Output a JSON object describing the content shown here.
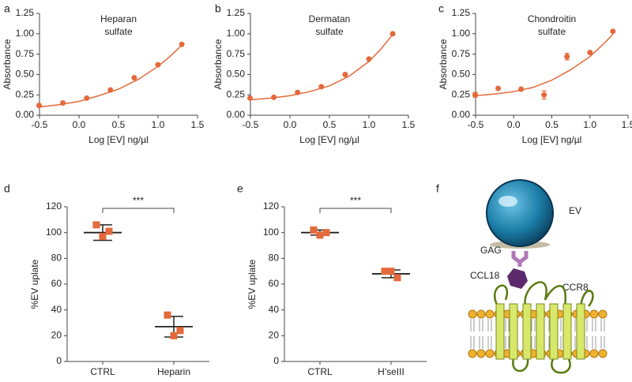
{
  "chart_data": [
    {
      "type": "curve",
      "panel": "a",
      "title": [
        "Heparan",
        "sulfate"
      ],
      "x_label": "Log [EV] ng/µl",
      "y_label": "Absorbance",
      "xlim": [
        -0.5,
        1.5
      ],
      "xticks": [
        {
          "value": -0.5,
          "label": "-0.5"
        },
        {
          "value": 0,
          "label": "0.0"
        },
        {
          "value": 0.5,
          "label": "0.5"
        },
        {
          "value": 1,
          "label": "1.0"
        },
        {
          "value": 1.5,
          "label": "1.5"
        }
      ],
      "ylim": [
        0,
        1.25
      ],
      "yticks": [
        {
          "value": 0,
          "label": "0.00"
        },
        {
          "value": 0.25,
          "label": "0.25"
        },
        {
          "value": 0.5,
          "label": "0.50"
        },
        {
          "value": 0.75,
          "label": "0.75"
        },
        {
          "value": 1,
          "label": "1.00"
        },
        {
          "value": 1.25,
          "label": "1.25"
        }
      ],
      "color": "#e4693a",
      "x": [
        -0.505,
        -0.204,
        0.097,
        0.398,
        0.699,
        1.0,
        1.301
      ],
      "values": [
        0.12,
        0.15,
        0.21,
        0.31,
        0.46,
        0.62,
        0.87
      ],
      "fit": {
        "x": [
          -0.5,
          -0.25,
          0,
          0.25,
          0.5,
          0.75,
          1.0,
          1.15,
          1.3
        ],
        "values": [
          0.1,
          0.13,
          0.17,
          0.24,
          0.32,
          0.44,
          0.6,
          0.72,
          0.86
        ]
      }
    },
    {
      "type": "curve",
      "panel": "b",
      "title": [
        "Dermatan",
        "sulfate"
      ],
      "x_label": "Log [EV] ng/µl",
      "y_label": "Absorbance",
      "xlim": [
        -0.5,
        1.5
      ],
      "xticks": [
        {
          "value": -0.5,
          "label": "-0.5"
        },
        {
          "value": 0,
          "label": "0.0"
        },
        {
          "value": 0.5,
          "label": "0.5"
        },
        {
          "value": 1,
          "label": "1.0"
        },
        {
          "value": 1.5,
          "label": "1.5"
        }
      ],
      "ylim": [
        0,
        1.25
      ],
      "yticks": [
        {
          "value": 0,
          "label": "0.00"
        },
        {
          "value": 0.25,
          "label": "0.25"
        },
        {
          "value": 0.5,
          "label": "0.50"
        },
        {
          "value": 0.75,
          "label": "0.75"
        },
        {
          "value": 1,
          "label": "1.00"
        },
        {
          "value": 1.25,
          "label": "1.25"
        }
      ],
      "color": "#e4693a",
      "x": [
        -0.505,
        -0.204,
        0.097,
        0.398,
        0.699,
        1.0,
        1.301
      ],
      "values": [
        0.21,
        0.22,
        0.28,
        0.35,
        0.5,
        0.69,
        1.0
      ],
      "fit": {
        "x": [
          -0.5,
          -0.25,
          0,
          0.25,
          0.5,
          0.75,
          1.0,
          1.15,
          1.3
        ],
        "values": [
          0.19,
          0.21,
          0.24,
          0.29,
          0.36,
          0.48,
          0.66,
          0.81,
          0.99
        ]
      }
    },
    {
      "type": "curve",
      "panel": "c",
      "title": [
        "Chondroitin",
        "sulfate"
      ],
      "x_label": "Log [EV] ng/µl",
      "y_label": "Absorbance",
      "xlim": [
        -0.5,
        1.5
      ],
      "xticks": [
        {
          "value": -0.5,
          "label": "-0.5"
        },
        {
          "value": 0,
          "label": "0.0"
        },
        {
          "value": 0.5,
          "label": "0.5"
        },
        {
          "value": 1,
          "label": "1.0"
        },
        {
          "value": 1.5,
          "label": "1.5"
        }
      ],
      "ylim": [
        0,
        1.25
      ],
      "yticks": [
        {
          "value": 0,
          "label": "0.00"
        },
        {
          "value": 0.25,
          "label": "0.25"
        },
        {
          "value": 0.5,
          "label": "0.50"
        },
        {
          "value": 0.75,
          "label": "0.75"
        },
        {
          "value": 1,
          "label": "1.00"
        },
        {
          "value": 1.25,
          "label": "1.25"
        }
      ],
      "color": "#e4693a",
      "x": [
        -0.505,
        -0.204,
        0.097,
        0.398,
        0.699,
        1.0,
        1.301
      ],
      "values": [
        0.25,
        0.33,
        0.32,
        0.25,
        0.72,
        0.77,
        1.03
      ],
      "errors": [
        0.03,
        null,
        null,
        0.05,
        0.04,
        null,
        null
      ],
      "fit": {
        "x": [
          -0.5,
          -0.25,
          0,
          0.25,
          0.5,
          0.75,
          1.0,
          1.15,
          1.3
        ],
        "values": [
          0.24,
          0.26,
          0.29,
          0.34,
          0.43,
          0.56,
          0.72,
          0.85,
          0.99
        ]
      }
    },
    {
      "type": "dotplot",
      "panel": "d",
      "y_label": "%EV uplate",
      "significance": "***",
      "color": "#e4693a",
      "ylim": [
        0,
        120
      ],
      "yticks": [
        0,
        20,
        40,
        60,
        80,
        100,
        120
      ],
      "categories": [
        "CTRL",
        "Heparin"
      ],
      "values": [
        [
          106,
          101,
          97
        ],
        [
          36,
          24,
          20
        ]
      ],
      "means": [
        100,
        27
      ],
      "errors": [
        6,
        8
      ]
    },
    {
      "type": "dotplot",
      "panel": "e",
      "y_label": "%EV uplate",
      "significance": "***",
      "color": "#e4693a",
      "ylim": [
        0,
        120
      ],
      "yticks": [
        0,
        20,
        40,
        60,
        80,
        100,
        120
      ],
      "categories": [
        "CTRL",
        "H'seIII"
      ],
      "values": [
        [
          102,
          100,
          98
        ],
        [
          70,
          65,
          70
        ]
      ],
      "means": [
        100,
        68
      ],
      "errors": [
        2,
        3
      ]
    }
  ],
  "diagram": {
    "panel": "f",
    "ev": "EV",
    "gag": "GAG",
    "ccl18": "CCL18",
    "ccr8": "CCR8"
  }
}
